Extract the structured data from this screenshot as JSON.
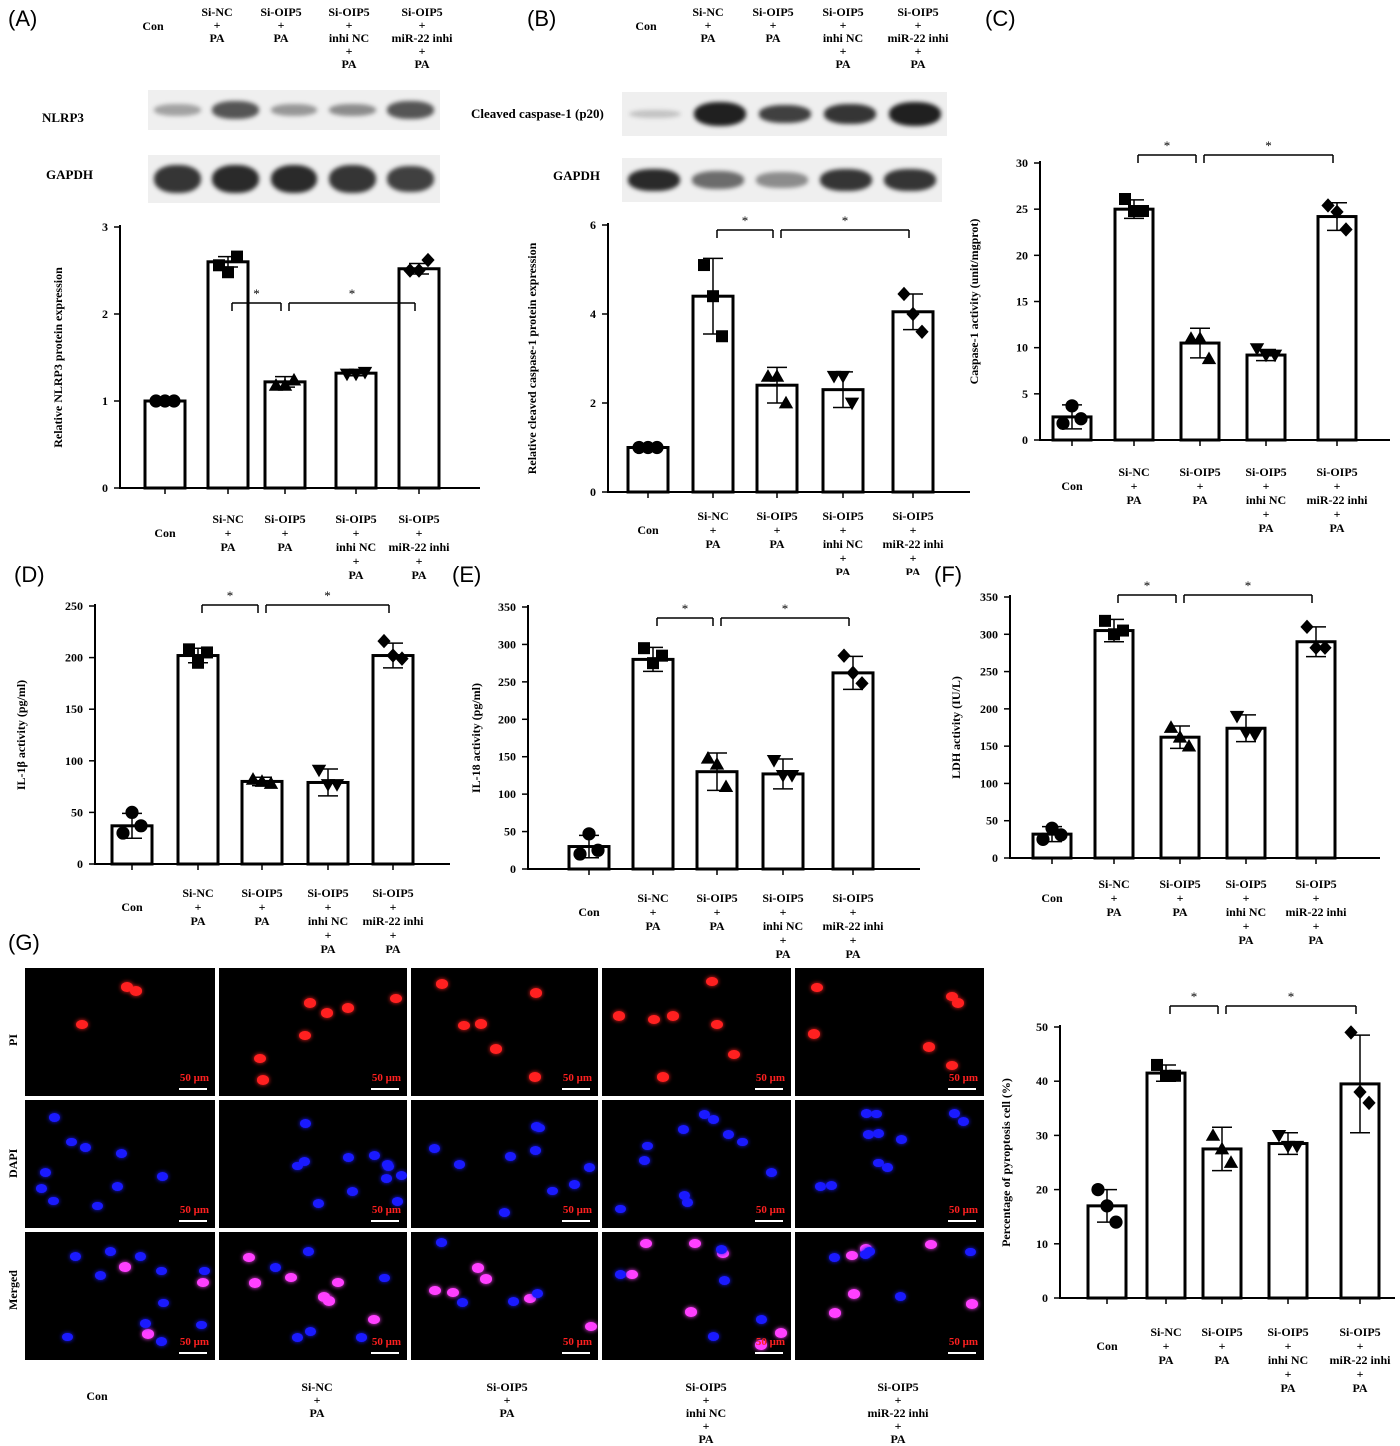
{
  "panels": {
    "A": "(A)",
    "B": "(B)",
    "C": "(C)",
    "D": "(D)",
    "E": "(E)",
    "F": "(F)",
    "G": "(G)"
  },
  "groups": [
    "Con",
    "Si-NC\n+\nPA",
    "Si-OIP5\n+\nPA",
    "Si-OIP5\n+\ninhi NC\n+\nPA",
    "Si-OIP5\n+\nmiR-22 inhi\n+\nPA"
  ],
  "blots": {
    "A": {
      "protein": "NLRP3",
      "loading": "GAPDH"
    },
    "B": {
      "protein": "Cleaved caspase-1 (p20)",
      "loading": "GAPDH"
    }
  },
  "micro": {
    "rows": [
      "PI",
      "DAPI",
      "Merged"
    ],
    "scale_label": "50 μm",
    "colors": {
      "PI": "#ff2020",
      "DAPI": "#1a1aff",
      "background": "#000000"
    }
  },
  "sig_mark": "*",
  "chart_data": [
    {
      "panel": "A",
      "type": "bar",
      "ylabel": "Relative NLRP3 protein expression",
      "ylim": [
        0,
        3
      ],
      "yticks": [
        0,
        1,
        2,
        3
      ],
      "values": [
        1.0,
        2.6,
        1.22,
        1.32,
        2.52
      ],
      "errors": [
        0.0,
        0.06,
        0.06,
        0.03,
        0.06
      ],
      "points": [
        [
          1,
          1,
          1
        ],
        [
          2.56,
          2.48,
          2.66
        ],
        [
          1.18,
          1.18,
          1.24
        ],
        [
          1.31,
          1.31,
          1.33
        ],
        [
          2.5,
          2.5,
          2.62
        ]
      ],
      "markers": [
        "circle",
        "square",
        "triangle-up",
        "triangle-down",
        "diamond"
      ],
      "sig": [
        [
          1,
          2
        ],
        [
          2,
          4
        ]
      ]
    },
    {
      "panel": "B",
      "type": "bar",
      "ylabel": "Relative cleaved caspase-1 protein expression",
      "ylim": [
        0,
        6
      ],
      "yticks": [
        0,
        2,
        4,
        6
      ],
      "values": [
        1.0,
        4.4,
        2.4,
        2.3,
        4.05
      ],
      "errors": [
        0.0,
        0.85,
        0.4,
        0.4,
        0.4
      ],
      "points": [
        [
          1,
          1,
          1
        ],
        [
          5.1,
          4.4,
          3.5
        ],
        [
          2.6,
          2.6,
          2.0
        ],
        [
          2.6,
          2.6,
          2.0
        ],
        [
          4.45,
          4.0,
          3.6
        ]
      ],
      "markers": [
        "circle",
        "square",
        "triangle-up",
        "triangle-down",
        "diamond"
      ],
      "sig": [
        [
          1,
          2
        ],
        [
          2,
          4
        ]
      ]
    },
    {
      "panel": "C",
      "type": "bar",
      "ylabel": "Caspase-1 activity  (unit/mgprot)",
      "ylim": [
        0,
        30
      ],
      "yticks": [
        0,
        5,
        10,
        15,
        20,
        25,
        30
      ],
      "values": [
        2.5,
        25.0,
        10.5,
        9.2,
        24.2
      ],
      "errors": [
        1.3,
        1.0,
        1.6,
        0.6,
        1.5
      ],
      "points": [
        [
          1.8,
          3.7,
          2.3
        ],
        [
          26.1,
          24.8,
          24.8
        ],
        [
          11.0,
          11.0,
          8.8
        ],
        [
          9.9,
          9.2,
          9.2
        ],
        [
          25.4,
          24.7,
          22.8
        ]
      ],
      "markers": [
        "circle",
        "square",
        "triangle-up",
        "triangle-down",
        "diamond"
      ],
      "sig": [
        [
          1,
          2
        ],
        [
          2,
          4
        ]
      ]
    },
    {
      "panel": "D",
      "type": "bar",
      "ylabel": "IL-1β activity (pg/ml)",
      "ylim": [
        0,
        250
      ],
      "yticks": [
        0,
        50,
        100,
        150,
        200,
        250
      ],
      "values": [
        37,
        202,
        80,
        79,
        202
      ],
      "errors": [
        12,
        7,
        4,
        13,
        12
      ],
      "points": [
        [
          30,
          50,
          37
        ],
        [
          208,
          195,
          205
        ],
        [
          82,
          80,
          78
        ],
        [
          91,
          77,
          77
        ],
        [
          216,
          202,
          199
        ]
      ],
      "markers": [
        "circle",
        "square",
        "triangle-up",
        "triangle-down",
        "diamond"
      ],
      "sig": [
        [
          1,
          2
        ],
        [
          2,
          4
        ]
      ]
    },
    {
      "panel": "E",
      "type": "bar",
      "ylabel": "IL-18 activity (pg/ml)",
      "ylim": [
        0,
        350
      ],
      "yticks": [
        0,
        50,
        100,
        150,
        200,
        250,
        300,
        350
      ],
      "values": [
        30,
        280,
        130,
        127,
        262
      ],
      "errors": [
        15,
        16,
        25,
        20,
        22
      ],
      "points": [
        [
          20,
          47,
          25
        ],
        [
          295,
          275,
          285
        ],
        [
          148,
          140,
          110
        ],
        [
          145,
          125,
          125
        ],
        [
          285,
          262,
          248
        ]
      ],
      "markers": [
        "circle",
        "square",
        "triangle-up",
        "triangle-down",
        "diamond"
      ],
      "sig": [
        [
          1,
          2
        ],
        [
          2,
          4
        ]
      ]
    },
    {
      "panel": "F",
      "type": "bar",
      "ylabel": "LDH activity (IU/L)",
      "ylim": [
        0,
        350
      ],
      "yticks": [
        0,
        50,
        100,
        150,
        200,
        250,
        300,
        350
      ],
      "values": [
        32,
        305,
        162,
        174,
        290
      ],
      "errors": [
        10,
        15,
        15,
        18,
        20
      ],
      "points": [
        [
          25,
          40,
          31
        ],
        [
          318,
          300,
          305
        ],
        [
          175,
          162,
          150
        ],
        [
          190,
          168,
          165
        ],
        [
          310,
          282,
          282
        ]
      ],
      "markers": [
        "circle",
        "square",
        "triangle-up",
        "triangle-down",
        "diamond"
      ],
      "sig": [
        [
          1,
          2
        ],
        [
          2,
          4
        ]
      ]
    },
    {
      "panel": "G",
      "type": "bar",
      "ylabel": "Percentage of pyroptosis cell (%)",
      "ylim": [
        0,
        50
      ],
      "yticks": [
        0,
        10,
        20,
        30,
        40,
        50
      ],
      "values": [
        17,
        41.5,
        27.5,
        28.5,
        39.5
      ],
      "errors": [
        3,
        1.5,
        4,
        2,
        9
      ],
      "points": [
        [
          20,
          17,
          14
        ],
        [
          43,
          41,
          41
        ],
        [
          30,
          27.5,
          25
        ],
        [
          30,
          28,
          28
        ],
        [
          49,
          38,
          36
        ]
      ],
      "markers": [
        "circle",
        "square",
        "triangle-up",
        "triangle-down",
        "diamond"
      ],
      "sig": [
        [
          1,
          2
        ],
        [
          2,
          4
        ]
      ]
    }
  ]
}
